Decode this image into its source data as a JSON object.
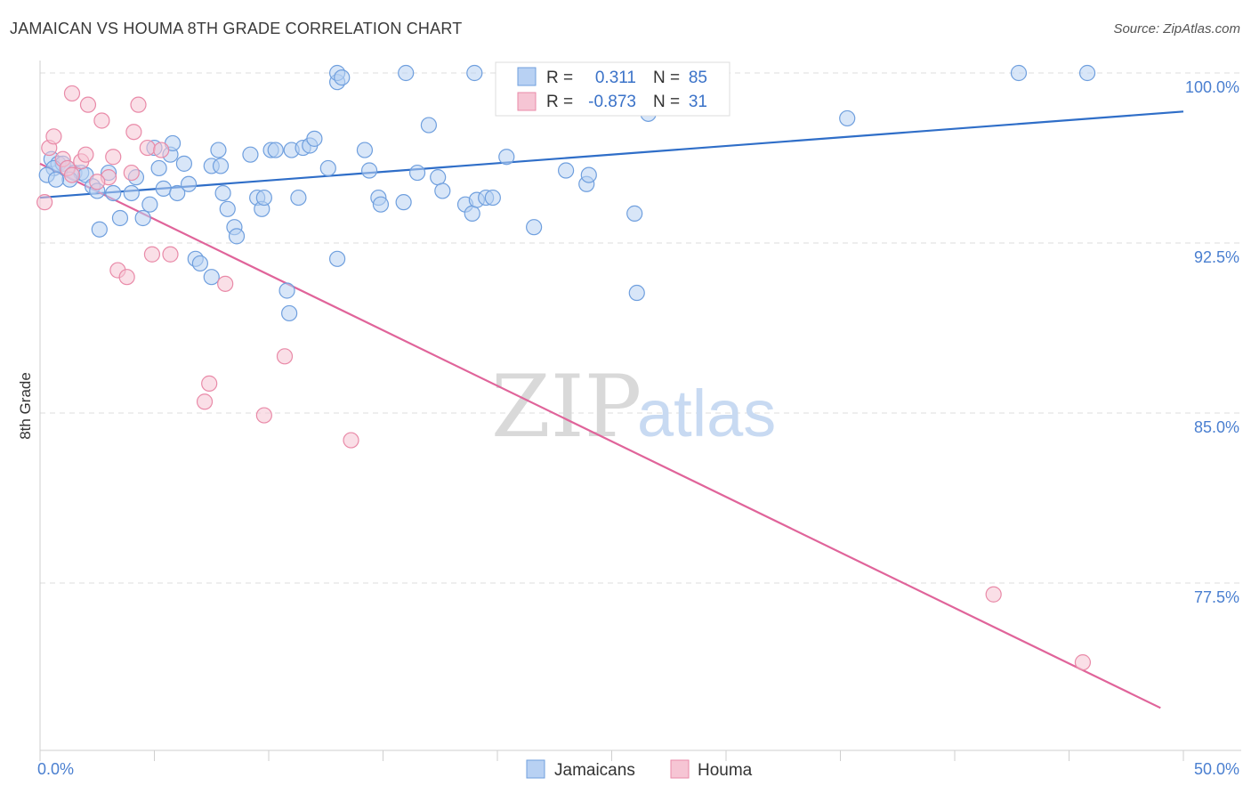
{
  "title": "JAMAICAN VS HOUMA 8TH GRADE CORRELATION CHART",
  "source": "Source: ZipAtlas.com",
  "watermark": {
    "left": "ZIP",
    "right": "atlas"
  },
  "colors": {
    "blue": "#6f9fde",
    "blue_fill": "#b8d1f3",
    "blue_line": "#2f6ec8",
    "pink": "#e98aa8",
    "pink_fill": "#f6c5d4",
    "pink_line": "#e0649a",
    "tick_text": "#4a7fd0",
    "grid": "#dddddd"
  },
  "legend_box": {
    "rows": [
      {
        "r_label": "R =",
        "r_value": "0.311",
        "n_label": "N =",
        "n_value": "85"
      },
      {
        "r_label": "R =",
        "r_value": "-0.873",
        "n_label": "N =",
        "n_value": "31"
      }
    ]
  },
  "chart_data": {
    "type": "scatter",
    "title": "JAMAICAN VS HOUMA 8TH GRADE CORRELATION CHART",
    "ylabel": "8th Grade",
    "xlabel": "",
    "xlim": [
      0,
      50
    ],
    "ylim": [
      71.5,
      100.5
    ],
    "x_tick_labels": [
      "0.0%",
      "50.0%"
    ],
    "y_ticks": [
      77.5,
      85.0,
      92.5,
      100.0
    ],
    "y_tick_labels": [
      "77.5%",
      "85.0%",
      "92.5%",
      "100.0%"
    ],
    "grid": true,
    "legend_position": "bottom",
    "series": [
      {
        "name": "Jamaicans",
        "r": 0.311,
        "n": 85,
        "trend": [
          [
            0,
            94.5
          ],
          [
            50,
            98.3
          ]
        ],
        "points": [
          [
            0.5,
            96.2
          ],
          [
            0.8,
            96.0
          ],
          [
            1.0,
            96.0
          ],
          [
            1.2,
            95.8
          ],
          [
            0.6,
            95.8
          ],
          [
            1.5,
            95.6
          ],
          [
            1.8,
            95.6
          ],
          [
            2.0,
            95.5
          ],
          [
            2.3,
            95.0
          ],
          [
            1.3,
            95.3
          ],
          [
            2.5,
            94.8
          ],
          [
            3.0,
            95.6
          ],
          [
            3.2,
            94.7
          ],
          [
            4.0,
            94.7
          ],
          [
            4.2,
            95.4
          ],
          [
            4.8,
            94.2
          ],
          [
            5.2,
            95.8
          ],
          [
            5.4,
            94.9
          ],
          [
            5.0,
            96.7
          ],
          [
            5.7,
            96.4
          ],
          [
            5.8,
            96.9
          ],
          [
            6.0,
            94.7
          ],
          [
            6.3,
            96.0
          ],
          [
            6.5,
            95.1
          ],
          [
            7.5,
            95.9
          ],
          [
            7.9,
            95.9
          ],
          [
            7.8,
            96.6
          ],
          [
            8.0,
            94.7
          ],
          [
            8.2,
            94.0
          ],
          [
            8.5,
            93.2
          ],
          [
            8.6,
            92.8
          ],
          [
            9.2,
            96.4
          ],
          [
            9.5,
            94.5
          ],
          [
            9.7,
            94.0
          ],
          [
            9.8,
            94.5
          ],
          [
            10.1,
            96.6
          ],
          [
            10.3,
            96.6
          ],
          [
            11.0,
            96.6
          ],
          [
            11.3,
            94.5
          ],
          [
            11.5,
            96.7
          ],
          [
            11.8,
            96.8
          ],
          [
            12.0,
            97.1
          ],
          [
            12.6,
            95.8
          ],
          [
            13.0,
            91.8
          ],
          [
            13.0,
            99.6
          ],
          [
            13.0,
            100.0
          ],
          [
            13.2,
            99.8
          ],
          [
            14.2,
            96.6
          ],
          [
            14.4,
            95.7
          ],
          [
            14.8,
            94.5
          ],
          [
            14.9,
            94.2
          ],
          [
            15.9,
            94.3
          ],
          [
            16.0,
            100.0
          ],
          [
            16.5,
            95.6
          ],
          [
            17.0,
            97.7
          ],
          [
            17.4,
            95.4
          ],
          [
            17.6,
            94.8
          ],
          [
            18.6,
            94.2
          ],
          [
            18.9,
            93.8
          ],
          [
            19.0,
            100.0
          ],
          [
            19.1,
            94.4
          ],
          [
            19.5,
            94.5
          ],
          [
            19.8,
            94.5
          ],
          [
            20.4,
            96.3
          ],
          [
            21.6,
            93.2
          ],
          [
            23.0,
            95.7
          ],
          [
            23.9,
            95.1
          ],
          [
            24.0,
            95.5
          ],
          [
            26.0,
            93.8
          ],
          [
            26.4,
            100.0
          ],
          [
            26.6,
            98.2
          ],
          [
            26.1,
            90.3
          ],
          [
            35.3,
            98.0
          ],
          [
            42.8,
            100.0
          ],
          [
            45.8,
            100.0
          ],
          [
            4.5,
            93.6
          ],
          [
            3.5,
            93.6
          ],
          [
            2.6,
            93.1
          ],
          [
            6.8,
            91.8
          ],
          [
            7.0,
            91.6
          ],
          [
            7.5,
            91.0
          ],
          [
            10.8,
            90.4
          ],
          [
            10.9,
            89.4
          ],
          [
            0.3,
            95.5
          ],
          [
            0.7,
            95.3
          ]
        ]
      },
      {
        "name": "Houma",
        "r": -0.873,
        "n": 31,
        "trend": [
          [
            0,
            96.0
          ],
          [
            50,
            71.5
          ]
        ],
        "points": [
          [
            0.2,
            94.3
          ],
          [
            0.4,
            96.7
          ],
          [
            0.6,
            97.2
          ],
          [
            1.0,
            96.2
          ],
          [
            1.2,
            95.8
          ],
          [
            1.4,
            95.5
          ],
          [
            1.4,
            99.1
          ],
          [
            1.8,
            96.1
          ],
          [
            2.0,
            96.4
          ],
          [
            2.1,
            98.6
          ],
          [
            2.7,
            97.9
          ],
          [
            3.0,
            95.4
          ],
          [
            3.2,
            96.3
          ],
          [
            3.4,
            91.3
          ],
          [
            3.8,
            91.0
          ],
          [
            4.1,
            97.4
          ],
          [
            4.3,
            98.6
          ],
          [
            4.7,
            96.7
          ],
          [
            4.9,
            92.0
          ],
          [
            5.3,
            96.6
          ],
          [
            5.7,
            92.0
          ],
          [
            7.2,
            85.5
          ],
          [
            7.4,
            86.3
          ],
          [
            8.1,
            90.7
          ],
          [
            9.8,
            84.9
          ],
          [
            10.7,
            87.5
          ],
          [
            13.6,
            83.8
          ],
          [
            4.0,
            95.6
          ],
          [
            41.7,
            77.0
          ],
          [
            45.6,
            74.0
          ],
          [
            2.5,
            95.2
          ]
        ]
      }
    ]
  },
  "axis": {
    "y_title": "8th Grade"
  },
  "legend": {
    "items": [
      "Jamaicans",
      "Houma"
    ]
  }
}
